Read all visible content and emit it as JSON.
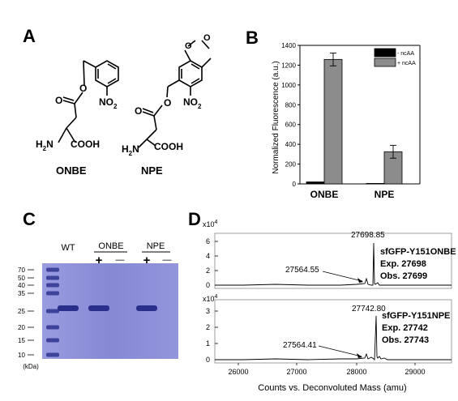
{
  "panels": {
    "a": "A",
    "b": "B",
    "c": "C",
    "d": "D"
  },
  "structures": {
    "left": {
      "name": "ONBE",
      "substituent": "NO",
      "sub2": "2",
      "amine": "H",
      "amine_sub": "2",
      "amine_n": "N",
      "acid": "COOH"
    },
    "right": {
      "name": "NPE",
      "substituent": "NO",
      "sub2": "2",
      "amine": "H",
      "amine_sub": "2",
      "amine_n": "N",
      "acid": "COOH"
    }
  },
  "chart_data": {
    "type": "bar",
    "categories": [
      "ONBE",
      "NPE"
    ],
    "series": [
      {
        "name": "- ncAA",
        "values": [
          20,
          5
        ],
        "color": "#000000"
      },
      {
        "name": "+ ncAA",
        "values": [
          1258,
          325
        ],
        "errors": [
          65,
          65
        ],
        "color": "#8c8c8c"
      }
    ],
    "ylabel": "Normalized Fluorescence (a.u.)",
    "ylim": [
      0,
      1400
    ],
    "yticks": [
      0,
      200,
      400,
      600,
      800,
      1000,
      1200,
      1400
    ],
    "legend": "top-right",
    "grid": false
  },
  "gel": {
    "lanes": [
      "WT",
      "ONBE",
      "NPE"
    ],
    "plus": "+",
    "minus": "—",
    "ladder": [
      "70",
      "50",
      "40",
      "35",
      "25",
      "20",
      "15",
      "10"
    ],
    "unit": "(kDa)",
    "band_present": [
      true,
      true,
      false,
      true,
      false
    ]
  },
  "mass_spec": {
    "multiplier": "x10",
    "exponent": "4",
    "xlabel": "Counts vs. Deconvoluted Mass (amu)",
    "xticks": [
      "26000",
      "27000",
      "28000",
      "29000"
    ],
    "top": {
      "yticks": [
        "0",
        "2",
        "4",
        "6"
      ],
      "peak_major": "27698.85",
      "peak_minor": "27564.55",
      "title": "sfGFP-Y151ONBE",
      "expected": "Exp. 27698",
      "observed": "Obs. 27699"
    },
    "bottom": {
      "yticks": [
        "0",
        "1",
        "2",
        "3"
      ],
      "peak_major": "27742.80",
      "peak_minor": "27564.41",
      "title": "sfGFP-Y151NPE",
      "expected": "Exp. 27742",
      "observed": "Obs. 27743"
    }
  }
}
